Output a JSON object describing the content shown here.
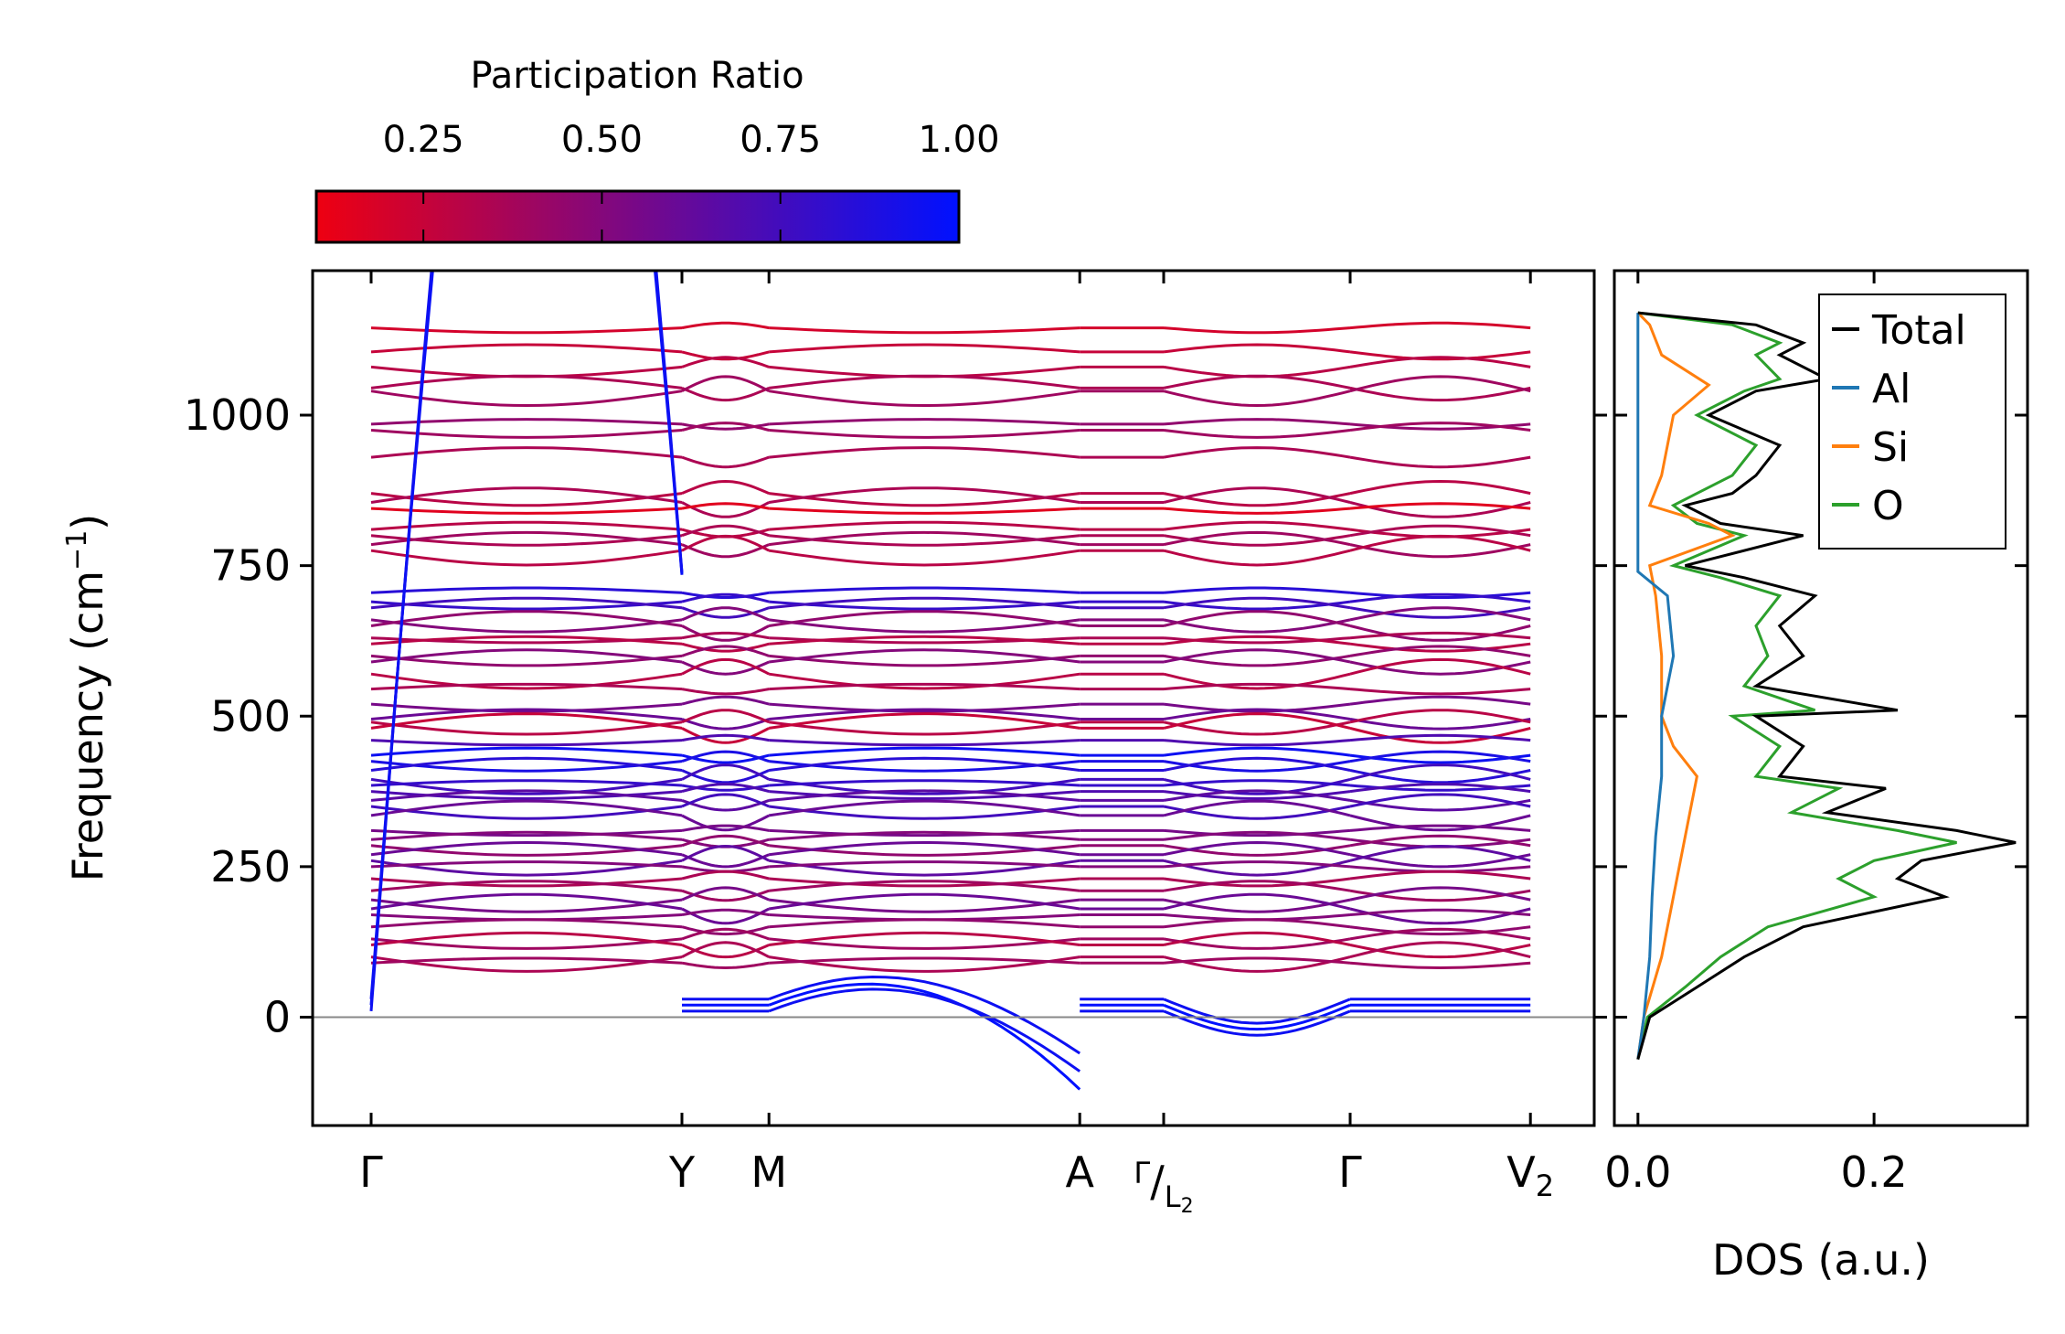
{
  "chart_data": [
    {
      "type": "line",
      "name": "phonon-dispersion",
      "ylabel": "Frequency (cm",
      "ylabel_sup": "−1",
      "ylabel_end": ")",
      "ylim": [
        -180,
        1240
      ],
      "yticks": [
        0,
        250,
        500,
        750,
        1000
      ],
      "ytick_labels": [
        "0",
        "250",
        "500",
        "750",
        "1000"
      ],
      "kpoints": [
        {
          "label": "Γ",
          "pos": 0.0
        },
        {
          "label": "Y",
          "pos": 1.0
        },
        {
          "label": "M",
          "pos": 1.28
        },
        {
          "label": "A",
          "pos": 2.28
        },
        {
          "label": "Γ",
          "sub_label": "L",
          "sub_index": "2",
          "pos": 2.55,
          "slash": true
        },
        {
          "label": "Γ",
          "pos": 3.15
        },
        {
          "label": "V",
          "subscript": "2",
          "pos": 3.73
        }
      ],
      "segments": [
        [
          0.0,
          1.0
        ],
        [
          1.0,
          1.28
        ],
        [
          1.28,
          2.28
        ],
        [
          2.28,
          2.55
        ],
        [
          2.55,
          3.15
        ],
        [
          3.15,
          3.73
        ]
      ],
      "flat_segment": [
        2.28,
        2.55
      ],
      "color_by": "Participation Ratio",
      "band_start_frequencies": [
        1145,
        1105,
        1080,
        1045,
        1040,
        985,
        975,
        930,
        870,
        855,
        845,
        810,
        800,
        785,
        775,
        705,
        690,
        680,
        660,
        650,
        630,
        620,
        600,
        590,
        570,
        545,
        520,
        495,
        490,
        480,
        460,
        435,
        425,
        410,
        395,
        385,
        375,
        360,
        350,
        335,
        310,
        295,
        285,
        270,
        260,
        250,
        230,
        210,
        195,
        180,
        170,
        150,
        130,
        120,
        100,
        90,
        30,
        20,
        10
      ],
      "band_participation": [
        0.2,
        0.25,
        0.3,
        0.35,
        0.4,
        0.45,
        0.4,
        0.35,
        0.3,
        0.35,
        0.15,
        0.3,
        0.35,
        0.4,
        0.3,
        0.85,
        0.8,
        0.75,
        0.5,
        0.45,
        0.35,
        0.3,
        0.45,
        0.5,
        0.3,
        0.35,
        0.55,
        0.6,
        0.3,
        0.25,
        0.7,
        0.95,
        0.9,
        0.85,
        0.75,
        0.8,
        0.7,
        0.65,
        0.75,
        0.6,
        0.55,
        0.5,
        0.45,
        0.6,
        0.65,
        0.5,
        0.35,
        0.4,
        0.55,
        0.6,
        0.5,
        0.45,
        0.4,
        0.3,
        0.35,
        0.4,
        0.95,
        1.0,
        0.95
      ],
      "acoustic_min_frequencies": [
        -120,
        -90,
        -60
      ]
    },
    {
      "type": "line",
      "name": "density-of-states",
      "xlabel": "DOS (a.u.)",
      "xlim": [
        -0.02,
        0.33
      ],
      "xticks": [
        0.0,
        0.2
      ],
      "xtick_labels": [
        "0.0",
        "0.2"
      ],
      "ylim": [
        -180,
        1240
      ],
      "series": [
        {
          "name": "Total",
          "color": "#000000",
          "freq": [
            -70,
            0,
            50,
            100,
            150,
            200,
            230,
            260,
            290,
            310,
            340,
            380,
            400,
            450,
            500,
            510,
            550,
            600,
            650,
            700,
            730,
            750,
            800,
            820,
            850,
            870,
            900,
            950,
            1000,
            1040,
            1060,
            1100,
            1120,
            1150,
            1170
          ],
          "dos": [
            0.0,
            0.01,
            0.05,
            0.09,
            0.14,
            0.26,
            0.22,
            0.24,
            0.32,
            0.27,
            0.16,
            0.21,
            0.12,
            0.14,
            0.1,
            0.22,
            0.1,
            0.14,
            0.12,
            0.15,
            0.09,
            0.04,
            0.14,
            0.07,
            0.04,
            0.08,
            0.1,
            0.12,
            0.06,
            0.1,
            0.16,
            0.12,
            0.14,
            0.1,
            0.0
          ]
        },
        {
          "name": "Al",
          "color": "#1f77b4",
          "freq": [
            -70,
            0,
            100,
            200,
            300,
            400,
            500,
            600,
            700,
            740,
            800,
            1170
          ],
          "dos": [
            0.0,
            0.005,
            0.01,
            0.012,
            0.015,
            0.02,
            0.02,
            0.03,
            0.025,
            0.0,
            0.0,
            0.0
          ]
        },
        {
          "name": "Si",
          "color": "#ff7f0e",
          "freq": [
            -70,
            0,
            100,
            200,
            300,
            400,
            450,
            500,
            600,
            700,
            750,
            800,
            820,
            850,
            900,
            1000,
            1050,
            1100,
            1150,
            1170
          ],
          "dos": [
            0.0,
            0.005,
            0.02,
            0.03,
            0.04,
            0.05,
            0.03,
            0.02,
            0.02,
            0.015,
            0.01,
            0.08,
            0.06,
            0.01,
            0.02,
            0.03,
            0.06,
            0.02,
            0.01,
            0.0
          ]
        },
        {
          "name": "O",
          "color": "#2ca02c",
          "freq": [
            -70,
            0,
            50,
            100,
            150,
            200,
            230,
            260,
            290,
            310,
            340,
            380,
            400,
            450,
            500,
            510,
            550,
            600,
            650,
            700,
            730,
            750,
            800,
            820,
            850,
            870,
            900,
            950,
            1000,
            1040,
            1060,
            1100,
            1120,
            1150,
            1170
          ],
          "dos": [
            0.0,
            0.008,
            0.04,
            0.07,
            0.11,
            0.2,
            0.17,
            0.2,
            0.27,
            0.22,
            0.13,
            0.17,
            0.1,
            0.12,
            0.08,
            0.15,
            0.09,
            0.11,
            0.1,
            0.12,
            0.07,
            0.03,
            0.09,
            0.05,
            0.03,
            0.05,
            0.08,
            0.1,
            0.05,
            0.09,
            0.12,
            0.1,
            0.12,
            0.08,
            0.0
          ]
        }
      ]
    }
  ],
  "colorbar": {
    "title": "Participation Ratio",
    "range": [
      0.1,
      1.0
    ],
    "ticks": [
      0.25,
      0.5,
      0.75,
      1.0
    ],
    "tick_labels": [
      "0.25",
      "0.50",
      "0.75",
      "1.00"
    ],
    "color_low": "#ee0011",
    "color_high": "#0011ff"
  },
  "legend": {
    "position": "top-right",
    "entries": [
      {
        "label": "Total",
        "color": "#000000"
      },
      {
        "label": "Al",
        "color": "#1f77b4"
      },
      {
        "label": "Si",
        "color": "#ff7f0e"
      },
      {
        "label": "O",
        "color": "#2ca02c"
      }
    ]
  }
}
